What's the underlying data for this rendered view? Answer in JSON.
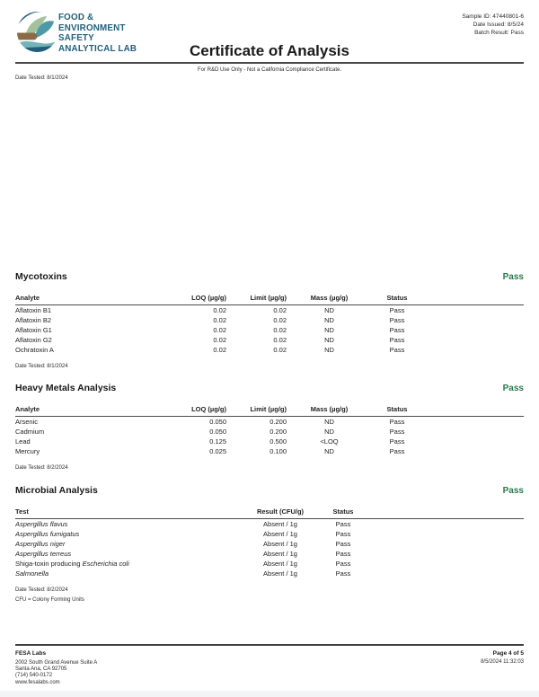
{
  "header": {
    "logo_lines": [
      "FOOD &",
      "ENVIRONMENT",
      "SAFETY",
      "ANALYTICAL LAB"
    ],
    "title": "Certificate of Analysis",
    "meta": {
      "sample_id": "Sample ID: 47440801-6",
      "date_issued": "Date Issued: 8/5/24",
      "batch_result": "Batch Result: Pass"
    },
    "disclaimer": "For R&D Use Only - Not a California Compliance Certificate.",
    "date_tested": "Date Tested: 8/1/2024"
  },
  "sections": [
    {
      "title": "Mycotoxins",
      "status": "Pass",
      "columns": [
        "Analyte",
        "LOQ (µg/g)",
        "Limit (µg/g)",
        "Mass (µg/g)",
        "Status"
      ],
      "rows": [
        [
          "Aflatoxin B1",
          "0.02",
          "0.02",
          "ND",
          "Pass"
        ],
        [
          "Aflatoxin B2",
          "0.02",
          "0.02",
          "ND",
          "Pass"
        ],
        [
          "Aflatoxin G1",
          "0.02",
          "0.02",
          "ND",
          "Pass"
        ],
        [
          "Aflatoxin G2",
          "0.02",
          "0.02",
          "ND",
          "Pass"
        ],
        [
          "Ochratoxin A",
          "0.02",
          "0.02",
          "ND",
          "Pass"
        ]
      ],
      "date_tested": "Date Tested: 8/1/2024"
    },
    {
      "title": "Heavy Metals Analysis",
      "status": "Pass",
      "columns": [
        "Analyte",
        "LOQ (µg/g)",
        "Limit (µg/g)",
        "Mass (µg/g)",
        "Status"
      ],
      "rows": [
        [
          "Arsenic",
          "0.050",
          "0.200",
          "ND",
          "Pass"
        ],
        [
          "Cadmium",
          "0.050",
          "0.200",
          "ND",
          "Pass"
        ],
        [
          "Lead",
          "0.125",
          "0.500",
          "<LOQ",
          "Pass"
        ],
        [
          "Mercury",
          "0.025",
          "0.100",
          "ND",
          "Pass"
        ]
      ],
      "date_tested": "Date Tested: 8/2/2024"
    },
    {
      "title": "Microbial Analysis",
      "status": "Pass",
      "columns": [
        "Test",
        "Result (CFU/g)",
        "Status"
      ],
      "rows": [
        {
          "test_pre": "",
          "test_italic": "Aspergillus flavus",
          "result": "Absent / 1g",
          "status": "Pass"
        },
        {
          "test_pre": "",
          "test_italic": "Aspergillus fumigatus",
          "result": "Absent / 1g",
          "status": "Pass"
        },
        {
          "test_pre": "",
          "test_italic": "Aspergillus niger",
          "result": "Absent / 1g",
          "status": "Pass"
        },
        {
          "test_pre": "",
          "test_italic": "Aspergillus terreus",
          "result": "Absent / 1g",
          "status": "Pass"
        },
        {
          "test_pre": "Shiga-toxin producing ",
          "test_italic": "Escherichia coli",
          "result": "Absent / 1g",
          "status": "Pass"
        },
        {
          "test_pre": "",
          "test_italic": "Salmonella",
          "result": "Absent / 1g",
          "status": "Pass"
        }
      ],
      "date_tested": "Date Tested: 8/2/2024",
      "note": "CFU = Colony Forming Units"
    }
  ],
  "footer": {
    "lab_name": "FESA Labs",
    "address_lines": [
      "2002 South Grand Avenue Suite A",
      "Santa Ana, CA 92705",
      "(714) 540-0172",
      "www.fesalabs.com"
    ],
    "page": "Page 4 of 5",
    "timestamp": "8/5/2024 11:32:03"
  },
  "colors": {
    "brand_teal": "#20607c",
    "pass_green": "#2b7a4d",
    "rule_dark": "#47484a",
    "logo_dark_blue": "#215e79",
    "logo_teal": "#4d9aa6",
    "logo_sage": "#a3c29c",
    "logo_brown": "#8a6a48",
    "logo_light_teal": "#74b3b7"
  }
}
